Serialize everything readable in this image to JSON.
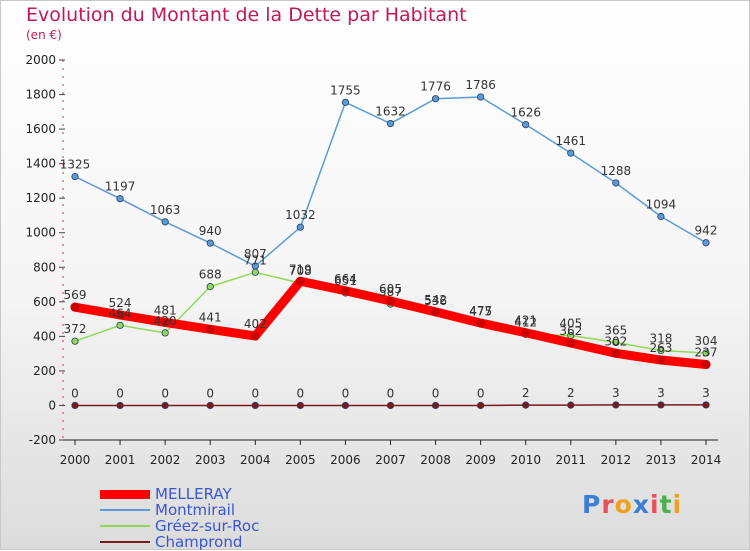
{
  "title": "Evolution du Montant de la Dette par Habitant",
  "subtitle": "(en €)",
  "logo": {
    "text": "Proxiti",
    "letter_colors": [
      "#3b7dd8",
      "#e8505b",
      "#f0a020",
      "#3b7dd8",
      "#e8505b",
      "#4caf50",
      "#f0a020"
    ]
  },
  "chart_data": {
    "type": "line",
    "x": [
      2000,
      2001,
      2002,
      2003,
      2004,
      2005,
      2006,
      2007,
      2008,
      2009,
      2010,
      2011,
      2012,
      2013,
      2014
    ],
    "ylim": [
      -200,
      2000
    ],
    "yticks": [
      -200,
      0,
      200,
      400,
      600,
      800,
      1000,
      1200,
      1400,
      1600,
      1800,
      2000
    ],
    "grid": false,
    "legend_position": "bottom-left",
    "series": [
      {
        "name": "Montmirail",
        "color": "#5b9bd5",
        "values": [
          1325,
          1197,
          1063,
          940,
          807,
          1032,
          1755,
          1632,
          1776,
          1786,
          1626,
          1461,
          1288,
          1094,
          942
        ]
      },
      {
        "name": "Gréez-sur-Roc",
        "color": "#8fd85a",
        "values": [
          372,
          464,
          420,
          688,
          771,
          708,
          651,
          587,
          536,
          475,
          412,
          405,
          365,
          318,
          304
        ]
      },
      {
        "name": "Champrond",
        "color": "#7b1a1a",
        "values": [
          0,
          0,
          0,
          0,
          0,
          0,
          0,
          0,
          0,
          0,
          2,
          2,
          3,
          3,
          3
        ]
      },
      {
        "name": "MELLERAY",
        "color": "#ff0000",
        "values": [
          569,
          524,
          481,
          441,
          402,
          719,
          664,
          605,
          542,
          477,
          421,
          362,
          302,
          263,
          237
        ]
      }
    ]
  }
}
